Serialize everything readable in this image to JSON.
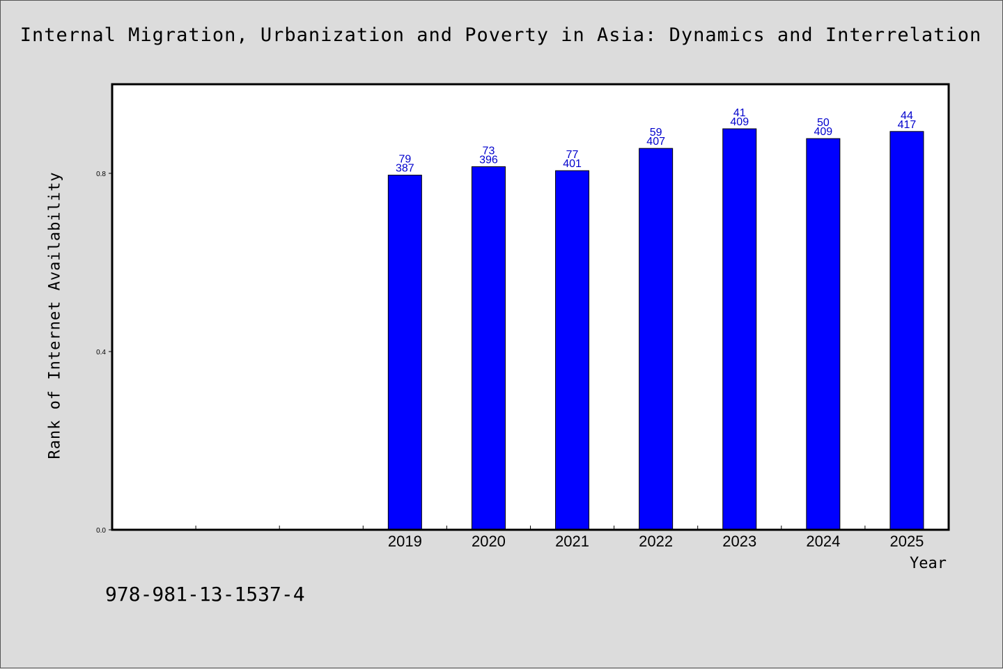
{
  "chart_data": {
    "type": "bar",
    "title": "Internal Migration, Urbanization and Poverty in Asia: Dynamics and Interrelation",
    "xlabel": "Year",
    "ylabel": "Rank of Internet Availability",
    "categories": [
      "",
      "",
      "",
      "2019",
      "2020",
      "2021",
      "2022",
      "2023",
      "2024",
      "2025"
    ],
    "values": [
      null,
      null,
      null,
      0.796,
      0.815,
      0.806,
      0.856,
      0.9,
      0.878,
      0.894
    ],
    "bar_labels": [
      null,
      null,
      null,
      [
        "79",
        "387"
      ],
      [
        "73",
        "396"
      ],
      [
        "77",
        "401"
      ],
      [
        "59",
        "407"
      ],
      [
        "41",
        "409"
      ],
      [
        "50",
        "409"
      ],
      [
        "44",
        "417"
      ]
    ],
    "yticks": [
      0.0,
      0.4,
      0.8
    ],
    "ytick_labels": [
      "0.0",
      "0.4",
      "0.8"
    ],
    "ylim": [
      0,
      1.0
    ],
    "bar_color": "#0000ff",
    "label_color": "#0000cc",
    "grid": false,
    "legend": "none"
  },
  "footer": {
    "note": "978-981-13-1537-4"
  }
}
